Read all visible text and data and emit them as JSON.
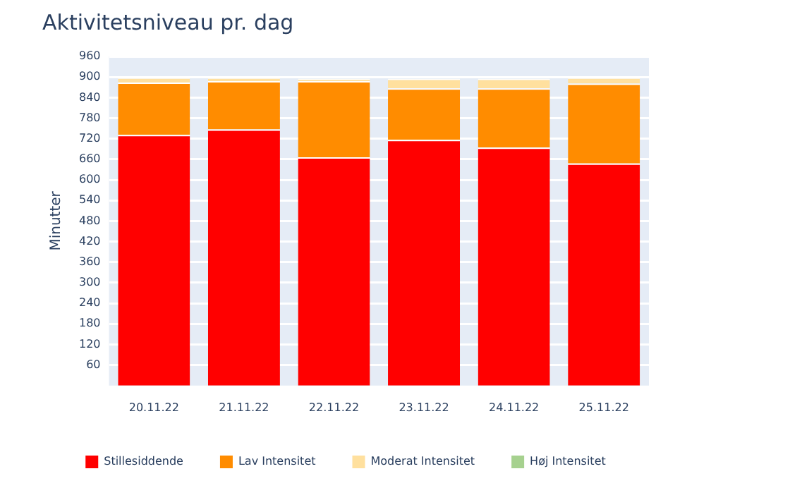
{
  "chart_data": {
    "type": "bar",
    "title": "Aktivitetsniveau pr. dag",
    "ylabel": "Minutter",
    "stacked": true,
    "categories": [
      "20.11.22",
      "21.11.22",
      "22.11.22",
      "23.11.22",
      "24.11.22",
      "25.11.22"
    ],
    "series": [
      {
        "name": "Stillesiddende",
        "color": "#ff0000",
        "values": [
          731,
          747,
          666,
          717,
          694,
          648
        ]
      },
      {
        "name": "Lav Intensitet",
        "color": "#ff8c00",
        "values": [
          153,
          141,
          222,
          150,
          173,
          233
        ]
      },
      {
        "name": "Moderat Intensitet",
        "color": "#ffe09e",
        "values": [
          15,
          11,
          7,
          28,
          28,
          18
        ]
      },
      {
        "name": "Høj Intensitet",
        "color": "#a6d18f",
        "values": [
          0,
          0,
          0,
          0,
          0,
          0
        ]
      }
    ],
    "ylim": [
      0,
      960
    ],
    "yticks": [
      60,
      120,
      180,
      240,
      300,
      360,
      420,
      480,
      540,
      600,
      660,
      720,
      780,
      840,
      900,
      960
    ],
    "grid": "y",
    "legend": "bottom"
  }
}
